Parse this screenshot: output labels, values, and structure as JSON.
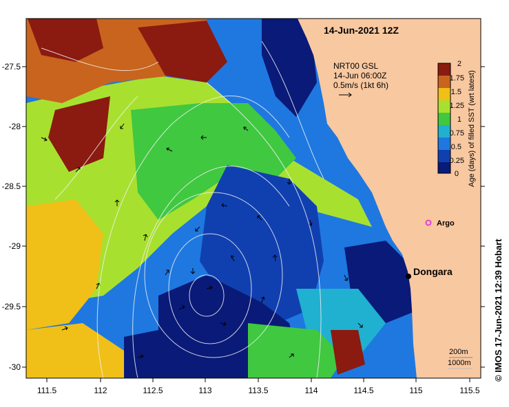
{
  "title": "14-Jun-2021 12Z",
  "overlay": {
    "line1": "NRT00 GSL",
    "line2": "14-Jun 06:00Z",
    "line3": "0.5m/s (1kt 6h)"
  },
  "colorbar": {
    "label": "Age (days) of filled SST (wrt latest)",
    "ticks": [
      "2",
      "1.75",
      "1.5",
      "1.25",
      "1",
      "0.75",
      "0.5",
      "0.25",
      "0"
    ],
    "colors": [
      "#8b1a10",
      "#c8641e",
      "#f0c018",
      "#a8e030",
      "#40c840",
      "#20b0d0",
      "#1e78e0",
      "#1040b0",
      "#0a1a78"
    ]
  },
  "x_ticks": [
    "111.5",
    "112",
    "112.5",
    "113",
    "113.5",
    "114",
    "114.5",
    "115",
    "115.5"
  ],
  "y_ticks": [
    "-27.5",
    "-28",
    "-28.5",
    "-29",
    "-29.5",
    "-30"
  ],
  "places": {
    "argo": "Argo",
    "dongara": "Dongara"
  },
  "legend": {
    "contour1": "200m",
    "contour2": "1000m"
  },
  "credit": "© IMOS 17-Jun-2021 12:39 Hobart",
  "colors": {
    "land": "#f8c8a0",
    "argo": "#e040e0"
  }
}
